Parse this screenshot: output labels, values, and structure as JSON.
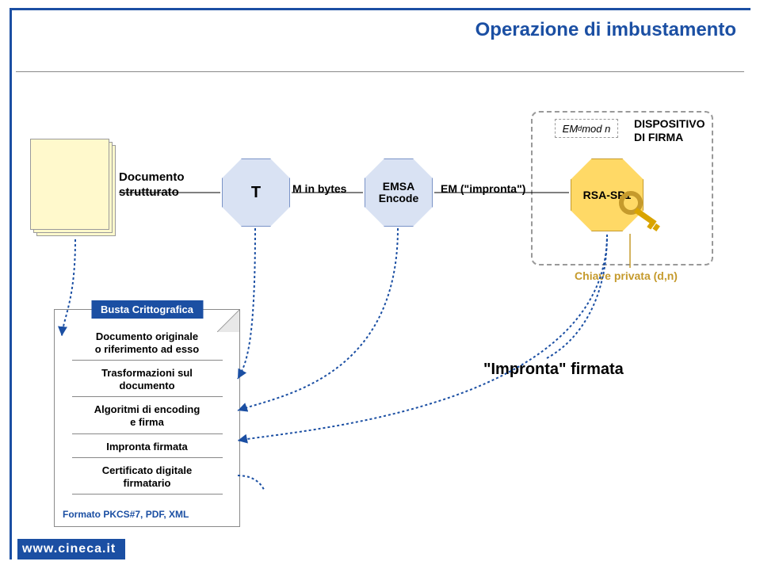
{
  "title": "Operazione di imbustamento",
  "colors": {
    "frame": "#1b4fa3",
    "oct_blue_fill": "#d9e2f3",
    "oct_blue_stroke": "#7a93c7",
    "oct_gold_fill": "#ffd966",
    "oct_gold_stroke": "#c59a2c",
    "key": "#d9a400",
    "doc_fill": "#fff9cc",
    "wire": "#1b4fa3",
    "text": "#000000",
    "bg": "#ffffff"
  },
  "document_label": "Documento\nstrutturato",
  "oct_t": "T",
  "oct_emsa": "EMSA\nEncode",
  "oct_rsa": "RSA-SP1",
  "flow_minbytes": "M in bytes",
  "flow_em": "EM (\"impronta\")",
  "em_formula": "EM",
  "em_formula_sup": "d",
  "em_formula_tail": " mod n",
  "dispositivo": "DISPOSITIVO\nDI FIRMA",
  "chiave": "Chiave privata (d,n)",
  "busta": {
    "title": "Busta Crittografica",
    "rows": [
      "Documento originale\no riferimento ad esso",
      "Trasformazioni sul\ndocumento",
      "Algoritmi di encoding\ne firma",
      "Impronta firmata",
      "Certificato digitale\nfirmatario"
    ],
    "footer": "Formato PKCS#7, PDF, XML"
  },
  "impronta_result": "\"Impronta\" firmata",
  "footer_url": "www.cineca.it"
}
